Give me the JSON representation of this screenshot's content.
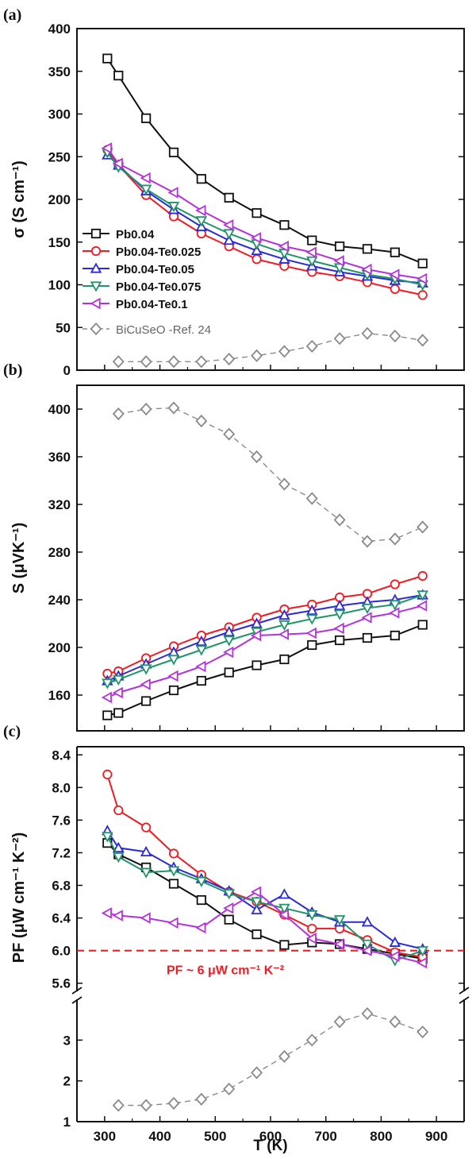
{
  "colors": {
    "Pb0.04": "#111111",
    "Pb0.04-Te0.025": "#ee1c24",
    "Pb0.04-Te0.05": "#2b2bd6",
    "Pb0.04-Te0.075": "#22946a",
    "Pb0.04-Te0.1": "#b433d9",
    "BiCuSeO -Ref. 24": "#8a8a8a",
    "ref_line": "#ee1c24"
  },
  "chart_data": [
    {
      "type": "line",
      "panel_label": "(a)",
      "xlabel": "",
      "ylabel": "σ (S cm⁻¹)",
      "xlim": [
        250,
        950
      ],
      "ylim": [
        0,
        400
      ],
      "y_ticks": [
        "0",
        "50",
        "100",
        "150",
        "200",
        "250",
        "300",
        "350",
        "400"
      ],
      "x_ticks": [
        "300",
        "400",
        "500",
        "600",
        "700",
        "800",
        "900"
      ],
      "legend_position": "left",
      "series": [
        {
          "name": "Pb0.04",
          "marker": "square",
          "filled": false,
          "dashed": false,
          "x": [
            305,
            325,
            375,
            425,
            475,
            525,
            575,
            625,
            675,
            725,
            775,
            825,
            875
          ],
          "y": [
            365,
            345,
            295,
            255,
            224,
            202,
            184,
            170,
            152,
            145,
            142,
            138,
            125
          ]
        },
        {
          "name": "Pb0.04-Te0.025",
          "marker": "circle",
          "filled": false,
          "dashed": false,
          "x": [
            305,
            325,
            375,
            425,
            475,
            525,
            575,
            625,
            675,
            725,
            775,
            825,
            875
          ],
          "y": [
            258,
            240,
            205,
            180,
            160,
            145,
            130,
            122,
            115,
            110,
            103,
            95,
            88
          ]
        },
        {
          "name": "Pb0.04-Te0.05",
          "marker": "triangle-up",
          "filled": false,
          "dashed": false,
          "x": [
            305,
            325,
            375,
            425,
            475,
            525,
            575,
            625,
            675,
            725,
            775,
            825,
            875
          ],
          "y": [
            252,
            240,
            210,
            188,
            168,
            152,
            140,
            130,
            122,
            115,
            110,
            105,
            102
          ]
        },
        {
          "name": "Pb0.04-Te0.075",
          "marker": "triangle-down",
          "filled": false,
          "dashed": false,
          "x": [
            305,
            325,
            375,
            425,
            475,
            525,
            575,
            625,
            675,
            725,
            775,
            825,
            875
          ],
          "y": [
            255,
            238,
            212,
            192,
            175,
            160,
            148,
            137,
            128,
            120,
            112,
            107,
            100
          ]
        },
        {
          "name": "Pb0.04-Te0.1",
          "marker": "triangle-left",
          "filled": false,
          "dashed": false,
          "x": [
            305,
            325,
            375,
            425,
            475,
            525,
            575,
            625,
            675,
            725,
            775,
            825,
            875
          ],
          "y": [
            260,
            242,
            225,
            208,
            187,
            170,
            155,
            145,
            138,
            128,
            118,
            112,
            107
          ]
        },
        {
          "name": "BiCuSeO -Ref. 24",
          "marker": "diamond",
          "filled": false,
          "dashed": true,
          "x": [
            325,
            375,
            425,
            475,
            525,
            575,
            625,
            675,
            725,
            775,
            825,
            875
          ],
          "y": [
            10,
            10,
            10,
            10,
            13,
            17,
            22,
            28,
            37,
            43,
            40,
            35
          ]
        }
      ]
    },
    {
      "type": "line",
      "panel_label": "(b)",
      "xlabel": "",
      "ylabel": "S (μVK⁻¹)",
      "xlim": [
        250,
        950
      ],
      "ylim": [
        130,
        420
      ],
      "y_ticks": [
        "160",
        "200",
        "240",
        "280",
        "320",
        "360",
        "400"
      ],
      "x_ticks": [
        "300",
        "400",
        "500",
        "600",
        "700",
        "800",
        "900"
      ],
      "series": [
        {
          "name": "Pb0.04",
          "x": [
            305,
            325,
            375,
            425,
            475,
            525,
            575,
            625,
            675,
            725,
            775,
            825,
            875
          ],
          "y": [
            143,
            145,
            155,
            164,
            172,
            179,
            185,
            190,
            202,
            206,
            208,
            210,
            219
          ]
        },
        {
          "name": "Pb0.04-Te0.025",
          "x": [
            305,
            325,
            375,
            425,
            475,
            525,
            575,
            625,
            675,
            725,
            775,
            825,
            875
          ],
          "y": [
            178,
            180,
            191,
            201,
            210,
            217,
            225,
            232,
            236,
            242,
            245,
            253,
            260
          ]
        },
        {
          "name": "Pb0.04-Te0.05",
          "x": [
            305,
            325,
            375,
            425,
            475,
            525,
            575,
            625,
            675,
            725,
            775,
            825,
            875
          ],
          "y": [
            172,
            176,
            186,
            196,
            205,
            213,
            220,
            227,
            231,
            235,
            238,
            240,
            244
          ]
        },
        {
          "name": "Pb0.04-Te0.075",
          "x": [
            305,
            325,
            375,
            425,
            475,
            525,
            575,
            625,
            675,
            725,
            775,
            825,
            875
          ],
          "y": [
            170,
            173,
            182,
            190,
            198,
            206,
            213,
            219,
            224,
            228,
            233,
            236,
            244
          ]
        },
        {
          "name": "Pb0.04-Te0.1",
          "x": [
            305,
            325,
            375,
            425,
            475,
            525,
            575,
            625,
            675,
            725,
            775,
            825,
            875
          ],
          "y": [
            158,
            162,
            169,
            176,
            184,
            196,
            210,
            211,
            212,
            216,
            225,
            229,
            235
          ]
        },
        {
          "name": "BiCuSeO -Ref. 24",
          "x": [
            325,
            375,
            425,
            475,
            525,
            575,
            625,
            675,
            725,
            775,
            825,
            875
          ],
          "y": [
            396,
            400,
            401,
            390,
            379,
            360,
            337,
            325,
            307,
            289,
            291,
            301
          ]
        }
      ]
    },
    {
      "type": "line",
      "panel_label": "(c)",
      "xlabel": "T (K)",
      "ylabel": "PF (μW cm⁻¹ K⁻²)",
      "xlim": [
        250,
        950
      ],
      "ylim_upper": [
        5.5,
        8.5
      ],
      "ylim_lower": [
        1,
        4
      ],
      "y_ticks_upper": [
        "5.6",
        "6.0",
        "6.4",
        "6.8",
        "7.2",
        "7.6",
        "8.0",
        "8.4"
      ],
      "y_ticks_lower": [
        "1",
        "2",
        "3"
      ],
      "x_ticks": [
        "300",
        "400",
        "500",
        "600",
        "700",
        "800",
        "900"
      ],
      "annotation": "PF ~ 6 μW cm⁻¹ K⁻²",
      "reference_line_y": 6.0,
      "series": [
        {
          "name": "Pb0.04",
          "x": [
            305,
            325,
            375,
            425,
            475,
            525,
            575,
            625,
            675,
            725,
            775,
            825,
            875
          ],
          "y": [
            7.32,
            7.18,
            7.02,
            6.82,
            6.62,
            6.38,
            6.2,
            6.07,
            6.1,
            6.08,
            6.02,
            5.96,
            5.9
          ]
        },
        {
          "name": "Pb0.04-Te0.025",
          "x": [
            305,
            325,
            375,
            425,
            475,
            525,
            575,
            625,
            675,
            725,
            775,
            825,
            875
          ],
          "y": [
            8.16,
            7.72,
            7.51,
            7.19,
            6.93,
            6.72,
            6.6,
            6.44,
            6.27,
            6.27,
            6.13,
            5.98,
            5.92
          ]
        },
        {
          "name": "Pb0.04-Te0.05",
          "x": [
            305,
            325,
            375,
            425,
            475,
            525,
            575,
            625,
            675,
            725,
            775,
            825,
            875
          ],
          "y": [
            7.47,
            7.26,
            7.21,
            7.02,
            6.88,
            6.73,
            6.5,
            6.69,
            6.47,
            6.35,
            6.35,
            6.1,
            6.02
          ]
        },
        {
          "name": "Pb0.04-Te0.075",
          "x": [
            305,
            325,
            375,
            425,
            475,
            525,
            575,
            625,
            675,
            725,
            775,
            825,
            875
          ],
          "y": [
            7.4,
            7.15,
            6.96,
            6.98,
            6.85,
            6.7,
            6.6,
            6.52,
            6.44,
            6.38,
            6.08,
            5.88,
            6.0
          ]
        },
        {
          "name": "Pb0.04-Te0.1",
          "x": [
            305,
            325,
            375,
            425,
            475,
            525,
            575,
            625,
            675,
            725,
            775,
            825,
            875
          ],
          "y": [
            6.46,
            6.43,
            6.4,
            6.34,
            6.28,
            6.52,
            6.72,
            6.44,
            6.15,
            6.08,
            6.0,
            5.93,
            5.85
          ]
        },
        {
          "name": "BiCuSeO -Ref. 24",
          "x": [
            325,
            375,
            425,
            475,
            525,
            575,
            625,
            675,
            725,
            775,
            825,
            875
          ],
          "y": [
            1.4,
            1.4,
            1.45,
            1.55,
            1.8,
            2.2,
            2.6,
            3.0,
            3.45,
            3.65,
            3.45,
            3.2
          ]
        }
      ]
    }
  ]
}
